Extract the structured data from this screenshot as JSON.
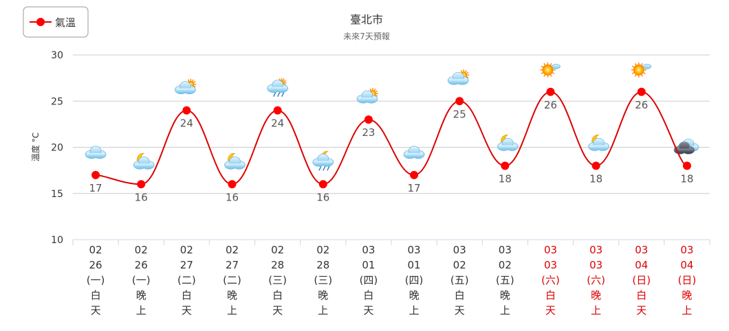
{
  "chart_data": {
    "type": "line",
    "title": "臺北市",
    "subtitle": "未來7天預報",
    "ylabel": "溫度 °C",
    "ylim": [
      10,
      30
    ],
    "yticks": [
      10,
      15,
      20,
      25,
      30
    ],
    "grid": true,
    "legend_position": "top-left",
    "series": [
      {
        "name": "氣溫",
        "color": "#dd0000",
        "values": [
          17,
          16,
          24,
          16,
          24,
          16,
          23,
          17,
          25,
          18,
          26,
          18,
          26,
          18
        ]
      }
    ],
    "categories": [
      {
        "month": "02",
        "day": "26",
        "weekday": "(一)",
        "period": "白天",
        "weekend": false,
        "icon": "cloudy-icon"
      },
      {
        "month": "02",
        "day": "26",
        "weekday": "(一)",
        "period": "晚上",
        "weekend": false,
        "icon": "moon-cloud-icon"
      },
      {
        "month": "02",
        "day": "27",
        "weekday": "(二)",
        "period": "白天",
        "weekend": false,
        "icon": "sun-cloud-icon"
      },
      {
        "month": "02",
        "day": "27",
        "weekday": "(二)",
        "period": "晚上",
        "weekend": false,
        "icon": "moon-cloud-icon"
      },
      {
        "month": "02",
        "day": "28",
        "weekday": "(三)",
        "period": "白天",
        "weekend": false,
        "icon": "sun-cloud-rain-icon"
      },
      {
        "month": "02",
        "day": "28",
        "weekday": "(三)",
        "period": "晚上",
        "weekend": false,
        "icon": "moon-cloud-rain-icon"
      },
      {
        "month": "03",
        "day": "01",
        "weekday": "(四)",
        "period": "白天",
        "weekend": false,
        "icon": "sun-cloud-icon"
      },
      {
        "month": "03",
        "day": "01",
        "weekday": "(四)",
        "period": "晚上",
        "weekend": false,
        "icon": "cloudy-icon"
      },
      {
        "month": "03",
        "day": "02",
        "weekday": "(五)",
        "period": "白天",
        "weekend": false,
        "icon": "sun-cloud-icon"
      },
      {
        "month": "03",
        "day": "02",
        "weekday": "(五)",
        "period": "晚上",
        "weekend": false,
        "icon": "moon-cloud-icon"
      },
      {
        "month": "03",
        "day": "03",
        "weekday": "(六)",
        "period": "白天",
        "weekend": true,
        "icon": "sunny-cloud-icon"
      },
      {
        "month": "03",
        "day": "03",
        "weekday": "(六)",
        "period": "晚上",
        "weekend": true,
        "icon": "moon-cloud-icon"
      },
      {
        "month": "03",
        "day": "04",
        "weekday": "(日)",
        "period": "白天",
        "weekend": true,
        "icon": "sunny-cloud-icon"
      },
      {
        "month": "03",
        "day": "04",
        "weekday": "(日)",
        "period": "晚上",
        "weekend": true,
        "icon": "dark-cloud-icon"
      }
    ],
    "colors": {
      "weekday_text": "#333333",
      "weekend_text": "#dd0000",
      "grid": "#cccccc",
      "axis": "#ccd6eb"
    }
  }
}
